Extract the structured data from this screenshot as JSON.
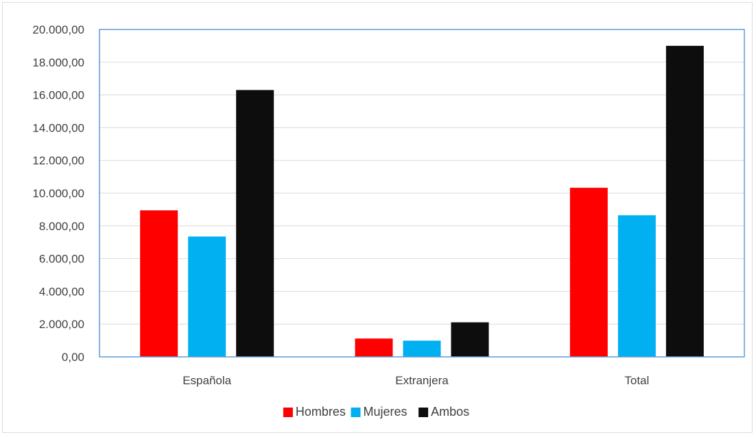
{
  "chart_data": {
    "type": "bar",
    "title": "",
    "xlabel": "",
    "ylabel": "",
    "categories": [
      "Española",
      "Extranjera",
      "Total"
    ],
    "series": [
      {
        "name": "Hombres",
        "color": "#ff0000",
        "values": [
          8950,
          1120,
          10330
        ]
      },
      {
        "name": "Mujeres",
        "color": "#00b0f0",
        "values": [
          7350,
          990,
          8650
        ]
      },
      {
        "name": "Ambos",
        "color": "#0d0d0d",
        "values": [
          16300,
          2110,
          19000
        ]
      }
    ],
    "ylim": [
      0,
      20000
    ],
    "yticks": [
      "0,00",
      "2.000,00",
      "4.000,00",
      "6.000,00",
      "8.000,00",
      "10.000,00",
      "12.000,00",
      "14.000,00",
      "16.000,00",
      "18.000,00",
      "20.000,00"
    ],
    "grid": true,
    "legend": "bottom"
  }
}
